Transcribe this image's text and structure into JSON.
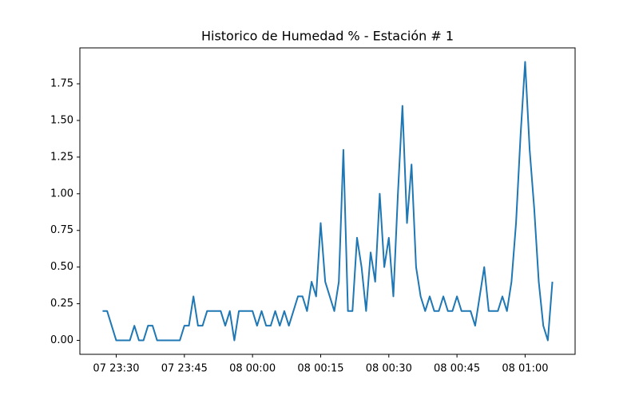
{
  "chart_data": {
    "type": "line",
    "title": "Historico de Humedad % - Estación # 1",
    "x": [
      "07 23:27",
      "07 23:28",
      "07 23:30",
      "07 23:31",
      "07 23:32",
      "07 23:33",
      "07 23:34",
      "07 23:35",
      "07 23:36",
      "07 23:37",
      "07 23:38",
      "07 23:39",
      "07 23:40",
      "07 23:41",
      "07 23:42",
      "07 23:43",
      "07 23:44",
      "07 23:45",
      "07 23:46",
      "07 23:47",
      "07 23:48",
      "07 23:49",
      "07 23:50",
      "07 23:51",
      "07 23:52",
      "07 23:53",
      "07 23:54",
      "07 23:55",
      "07 23:56",
      "07 23:57",
      "07 23:58",
      "07 23:59",
      "08 00:00",
      "08 00:01",
      "08 00:02",
      "08 00:03",
      "08 00:04",
      "08 00:05",
      "08 00:06",
      "08 00:07",
      "08 00:08",
      "08 00:09",
      "08 00:10",
      "08 00:11",
      "08 00:12",
      "08 00:13",
      "08 00:14",
      "08 00:15",
      "08 00:16",
      "08 00:18",
      "08 00:19",
      "08 00:20",
      "08 00:21",
      "08 00:22",
      "08 00:23",
      "08 00:24",
      "08 00:25",
      "08 00:26",
      "08 00:27",
      "08 00:28",
      "08 00:29",
      "08 00:30",
      "08 00:31",
      "08 00:32",
      "08 00:33",
      "08 00:34",
      "08 00:35",
      "08 00:36",
      "08 00:37",
      "08 00:38",
      "08 00:39",
      "08 00:40",
      "08 00:41",
      "08 00:42",
      "08 00:43",
      "08 00:44",
      "08 00:45",
      "08 00:46",
      "08 00:47",
      "08 00:48",
      "08 00:49",
      "08 00:50",
      "08 00:51",
      "08 00:52",
      "08 00:53",
      "08 00:54",
      "08 00:55",
      "08 00:56",
      "08 00:57",
      "08 00:58",
      "08 00:59",
      "08 01:00",
      "08 01:01",
      "08 01:02",
      "08 01:03",
      "08 01:04",
      "08 01:05",
      "08 01:06"
    ],
    "values": [
      0.2,
      0.2,
      0,
      0,
      0,
      0,
      0.1,
      0,
      0,
      0.1,
      0.1,
      0,
      0,
      0,
      0,
      0,
      0,
      0.1,
      0.1,
      0.3,
      0.1,
      0.1,
      0.2,
      0.2,
      0.2,
      0.2,
      0.1,
      0.2,
      0,
      0.2,
      0.2,
      0.2,
      0.2,
      0.1,
      0.2,
      0.1,
      0.1,
      0.2,
      0.1,
      0.2,
      0.1,
      0.2,
      0.3,
      0.3,
      0.2,
      0.4,
      0.3,
      0.8,
      0.4,
      0.2,
      0.4,
      1.3,
      0.2,
      0.2,
      0.7,
      0.5,
      0.2,
      0.6,
      0.4,
      1.0,
      0.5,
      0.7,
      0.3,
      1.0,
      1.6,
      0.8,
      1.2,
      0.5,
      0.3,
      0.2,
      0.3,
      0.2,
      0.2,
      0.3,
      0.2,
      0.2,
      0.3,
      0.2,
      0.2,
      0.2,
      0.1,
      0.3,
      0.5,
      0.2,
      0.2,
      0.2,
      0.3,
      0.2,
      0.4,
      0.8,
      1.4,
      1.9,
      1.3,
      0.9,
      0.4,
      0.1,
      0,
      0.4
    ],
    "color": "#1f77b4",
    "xlim": [
      "07 23:22",
      "08 01:11"
    ],
    "xticks": [
      "07 23:30",
      "07 23:45",
      "08 00:00",
      "08 00:15",
      "08 00:30",
      "08 00:45",
      "08 01:00"
    ],
    "ylim": [
      -0.095,
      1.995
    ],
    "yticks": [
      {
        "value": 0,
        "label": "0.00"
      },
      {
        "value": 0.25,
        "label": "0.25"
      },
      {
        "value": 0.5,
        "label": "0.50"
      },
      {
        "value": 0.75,
        "label": "0.75"
      },
      {
        "value": 1,
        "label": "1.00"
      },
      {
        "value": 1.25,
        "label": "1.25"
      },
      {
        "value": 1.5,
        "label": "1.50"
      },
      {
        "value": 1.75,
        "label": "1.75"
      }
    ],
    "grid": false
  }
}
